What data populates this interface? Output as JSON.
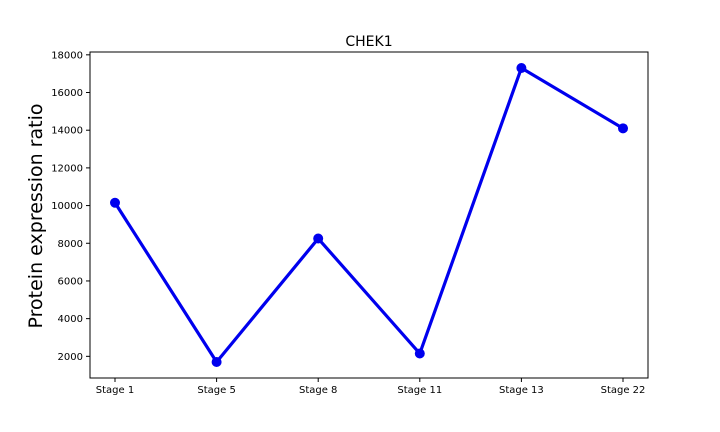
{
  "chart_data": {
    "type": "line",
    "title": "CHEK1",
    "xlabel": "",
    "ylabel": "Protein expression ratio",
    "categories": [
      "Stage 1",
      "Stage 5",
      "Stage 8",
      "Stage 11",
      "Stage 13",
      "Stage 22"
    ],
    "series": [
      {
        "values": [
          10150,
          1700,
          8250,
          2150,
          17300,
          14100
        ]
      }
    ],
    "ylim": [
      850,
      18150
    ],
    "yticks": [
      2000,
      4000,
      6000,
      8000,
      10000,
      12000,
      14000,
      16000,
      18000
    ],
    "grid": false,
    "color": "#0000ee"
  }
}
